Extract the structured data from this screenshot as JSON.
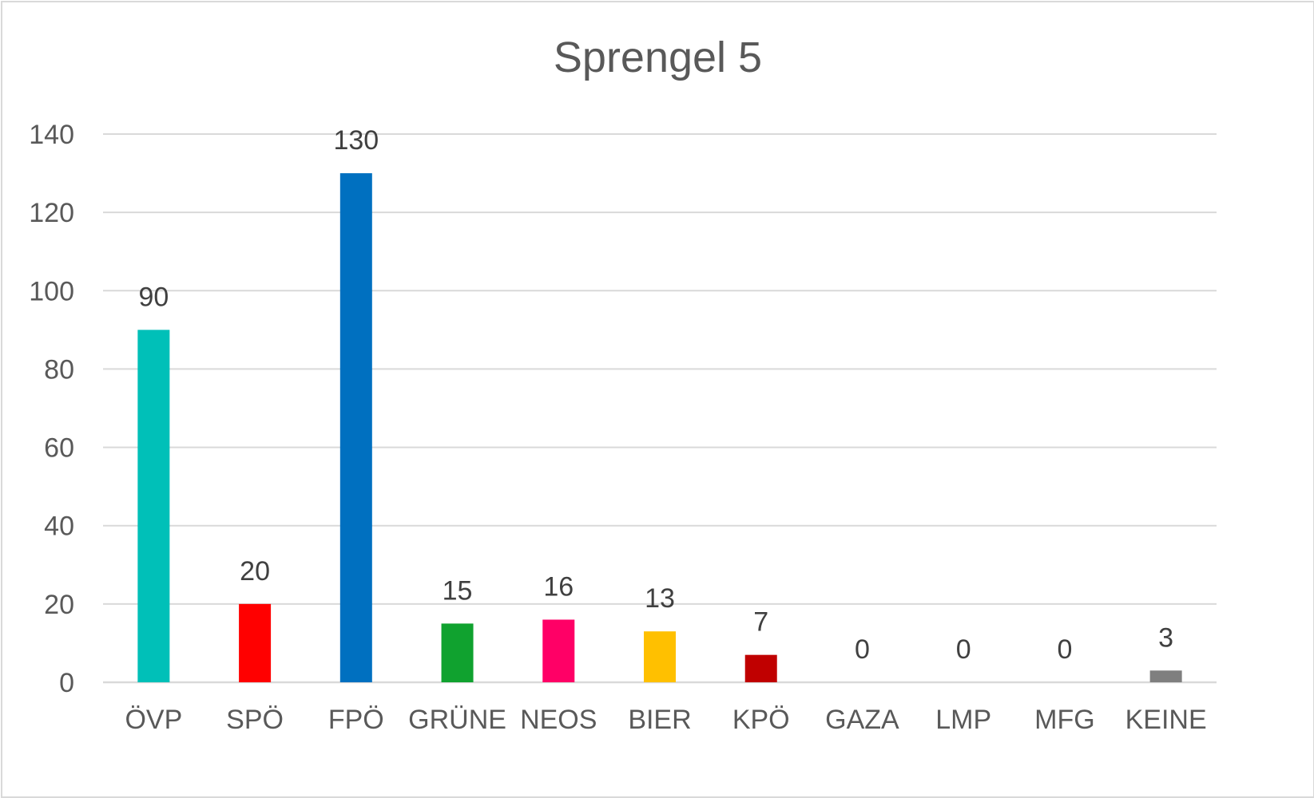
{
  "chart_data": {
    "type": "bar",
    "title": "Sprengel 5",
    "categories": [
      "ÖVP",
      "SPÖ",
      "FPÖ",
      "GRÜNE",
      "NEOS",
      "BIER",
      "KPÖ",
      "GAZA",
      "LMP",
      "MFG",
      "KEINE"
    ],
    "values": [
      90,
      20,
      130,
      15,
      16,
      13,
      7,
      0,
      0,
      0,
      3
    ],
    "colors": [
      "#00c0b8",
      "#ff0000",
      "#0070c0",
      "#10a22f",
      "#ff0066",
      "#ffc000",
      "#c00000",
      "#ffffff",
      "#ffffff",
      "#ffffff",
      "#7f7f7f"
    ],
    "ylim": [
      0,
      140
    ],
    "yticks": [
      "0",
      "20",
      "40",
      "60",
      "80",
      "100",
      "120",
      "140"
    ],
    "grid": true,
    "data_labels": true,
    "legend": "none"
  }
}
